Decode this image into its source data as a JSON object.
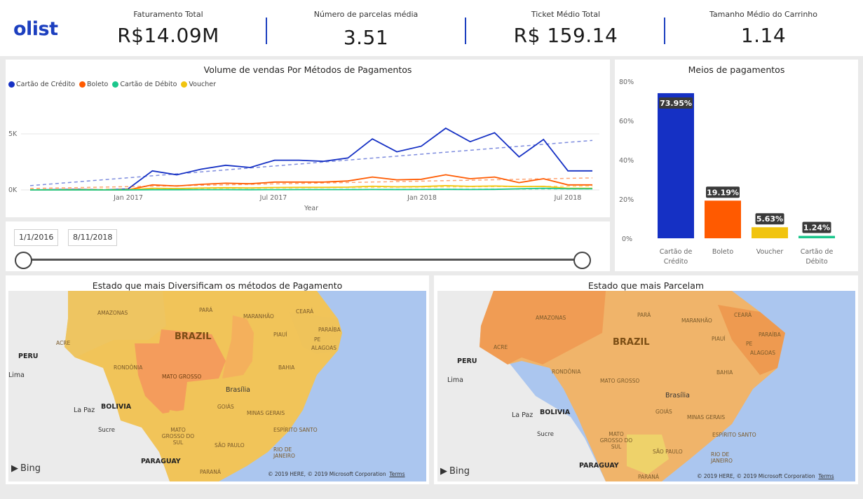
{
  "header": {
    "logo": "olist",
    "kpis": [
      {
        "label": "Faturamento Total",
        "value": "R$14.09M"
      },
      {
        "label": "Número de parcelas média",
        "value": "3.51"
      },
      {
        "label": "Ticket Médio Total",
        "value": "R$ 159.14"
      },
      {
        "label": "Tamanho Médio do Carrinho",
        "value": "1.14"
      }
    ],
    "separator_color": "#1c3fbf"
  },
  "line_chart": {
    "title": "Volume de vendas Por Métodos de Pagamentos",
    "legend": [
      {
        "name": "Cartão de Crédito",
        "color": "#1530c4"
      },
      {
        "name": "Boleto",
        "color": "#ff5a00"
      },
      {
        "name": "Cartão de Débito",
        "color": "#1bc78c"
      },
      {
        "name": "Voucher",
        "color": "#f1c40f"
      }
    ],
    "y_ticks": [
      "5K",
      "0K"
    ],
    "x_ticks": [
      "Jan 2017",
      "Jul 2017",
      "Jan 2018",
      "Jul 2018"
    ],
    "x_label": "Year"
  },
  "slicer": {
    "start_date": "1/1/2016",
    "end_date": "8/11/2018"
  },
  "bar_chart": {
    "title": "Meios de pagamentos",
    "y_ticks": [
      "80%",
      "60%",
      "40%",
      "20%",
      "0%"
    ]
  },
  "map_left": {
    "title": "Estado que mais Diversificam os métodos de Pagamento",
    "labels": {
      "brazil": "BRAZIL",
      "peru": "PERU",
      "bolivia": "BOLIVIA",
      "paraguay": "PARAGUAY",
      "lima": "Lima",
      "lapaz": "La Paz",
      "sucre": "Sucre",
      "brasilia": "Brasília",
      "amazonas": "AMAZONAS",
      "para": "PARÁ",
      "maranhao": "MARANHÃO",
      "ceara": "CEARÁ",
      "paraiba": "PARAÍBA",
      "piaui": "PIAUÍ",
      "pe": "PE",
      "alagoas": "ALAGOAS",
      "acre": "ACRE",
      "rondonia": "RONDÔNIA",
      "mato_grosso": "MATO GROSSO",
      "bahia": "BAHIA",
      "goias": "GOIÁS",
      "minas": "MINAS GERAIS",
      "ms": "MATO GROSSO DO SUL",
      "sao_paulo": "SÃO PAULO",
      "espirito": "ESPÍRITO SANTO",
      "rio": "RIO DE JANEIRO",
      "parana": "PARANÁ"
    },
    "attribution": "Bing",
    "copyright": "© 2019 HERE, © 2019 Microsoft Corporation",
    "terms": "Terms"
  },
  "map_right": {
    "title": "Estado que mais Parcelam",
    "attribution": "Bing",
    "copyright": "© 2019 HERE, © 2019 Microsoft Corporation",
    "terms": "Terms"
  },
  "chart_data": [
    {
      "type": "line",
      "title": "Volume de vendas Por Métodos de Pagamentos",
      "xlabel": "Year",
      "ylabel": "",
      "x": [
        "2016-09",
        "2016-10",
        "2016-11",
        "2016-12",
        "2017-01",
        "2017-02",
        "2017-03",
        "2017-04",
        "2017-05",
        "2017-06",
        "2017-07",
        "2017-08",
        "2017-09",
        "2017-10",
        "2017-11",
        "2017-12",
        "2018-01",
        "2018-02",
        "2018-03",
        "2018-04",
        "2018-05",
        "2018-06",
        "2018-07",
        "2018-08"
      ],
      "ylim": [
        0,
        7000
      ],
      "series": [
        {
          "name": "Cartão de Crédito",
          "values": [
            0,
            30,
            50,
            10,
            80,
            1700,
            1350,
            1850,
            2200,
            2000,
            2650,
            2650,
            2550,
            2850,
            4550,
            3400,
            3900,
            5500,
            4300,
            5100,
            2950,
            4500,
            1700,
            1700
          ]
        },
        {
          "name": "Boleto",
          "values": [
            0,
            10,
            20,
            5,
            10,
            450,
            350,
            500,
            600,
            550,
            700,
            700,
            700,
            800,
            1150,
            900,
            950,
            1350,
            1000,
            1150,
            650,
            1000,
            450,
            450
          ]
        },
        {
          "name": "Voucher",
          "values": [
            0,
            5,
            5,
            0,
            10,
            150,
            120,
            170,
            200,
            180,
            220,
            230,
            230,
            250,
            330,
            280,
            300,
            380,
            320,
            350,
            300,
            320,
            150,
            150
          ]
        },
        {
          "name": "Cartão de Débito",
          "values": [
            0,
            0,
            0,
            0,
            0,
            20,
            20,
            25,
            25,
            20,
            25,
            30,
            30,
            30,
            40,
            35,
            40,
            50,
            40,
            50,
            100,
            150,
            100,
            100
          ]
        }
      ]
    },
    {
      "type": "bar",
      "title": "Meios de pagamentos",
      "categories": [
        "Cartão de Crédito",
        "Boleto",
        "Voucher",
        "Cartão de Débito"
      ],
      "values": [
        73.95,
        19.19,
        5.63,
        1.24
      ],
      "data_labels": [
        "73.95%",
        "19.19%",
        "5.63%",
        "1.24%"
      ],
      "colors": [
        "#1530c4",
        "#ff5a00",
        "#f1c40f",
        "#1bc78c"
      ],
      "ylim": [
        0,
        80
      ]
    }
  ]
}
